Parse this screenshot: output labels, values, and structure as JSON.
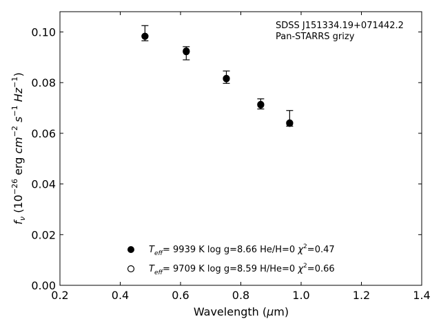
{
  "chart_data": {
    "type": "scatter",
    "annotation": {
      "line1": "SDSS J151334.19+071442.2",
      "line2": "Pan-STARRS grizy"
    },
    "xlabel": "Wavelength (μm)",
    "ylabel": "f_ν (10^-26 erg cm^-2 s^-1 Hz^-1)",
    "xlim": [
      0.2,
      1.4
    ],
    "ylim": [
      0.0,
      0.108
    ],
    "xticks": [
      "0.2",
      "0.4",
      "0.6",
      "0.8",
      "1.0",
      "1.2",
      "1.4"
    ],
    "yticks": [
      "0.00",
      "0.02",
      "0.04",
      "0.06",
      "0.08",
      "0.10"
    ],
    "grid": false,
    "legend_position": "bottom-center",
    "observed": {
      "x": [
        0.482,
        0.619,
        0.752,
        0.866,
        0.962
      ],
      "y": [
        0.0987,
        0.093,
        0.0822,
        0.0716,
        0.0646
      ],
      "err_low": [
        0.0022,
        0.004,
        0.0025,
        0.002,
        0.0018
      ],
      "err_high": [
        0.0038,
        0.0012,
        0.0024,
        0.002,
        0.0044
      ]
    },
    "series": [
      {
        "label": "T_eff=  9939 K  log g=8.66  He/H=0  χ²=0.47",
        "teff": "9939 K",
        "logg": "8.66",
        "comp": "He/H=0",
        "chi2": "0.47",
        "marker": "filled",
        "x": [
          0.482,
          0.619,
          0.752,
          0.866,
          0.962
        ],
        "y": [
          0.0983,
          0.0922,
          0.0815,
          0.0712,
          0.0639
        ]
      },
      {
        "label": "T_eff=  9709 K  log g=8.59  H/He=0  χ²=0.66",
        "teff": "9709 K",
        "logg": "8.59",
        "comp": "H/He=0",
        "chi2": "0.66",
        "marker": "open",
        "x": [
          0.482,
          0.619,
          0.752,
          0.866,
          0.962
        ],
        "y": [
          0.0983,
          0.0925,
          0.0817,
          0.0714,
          0.0641
        ]
      }
    ]
  }
}
